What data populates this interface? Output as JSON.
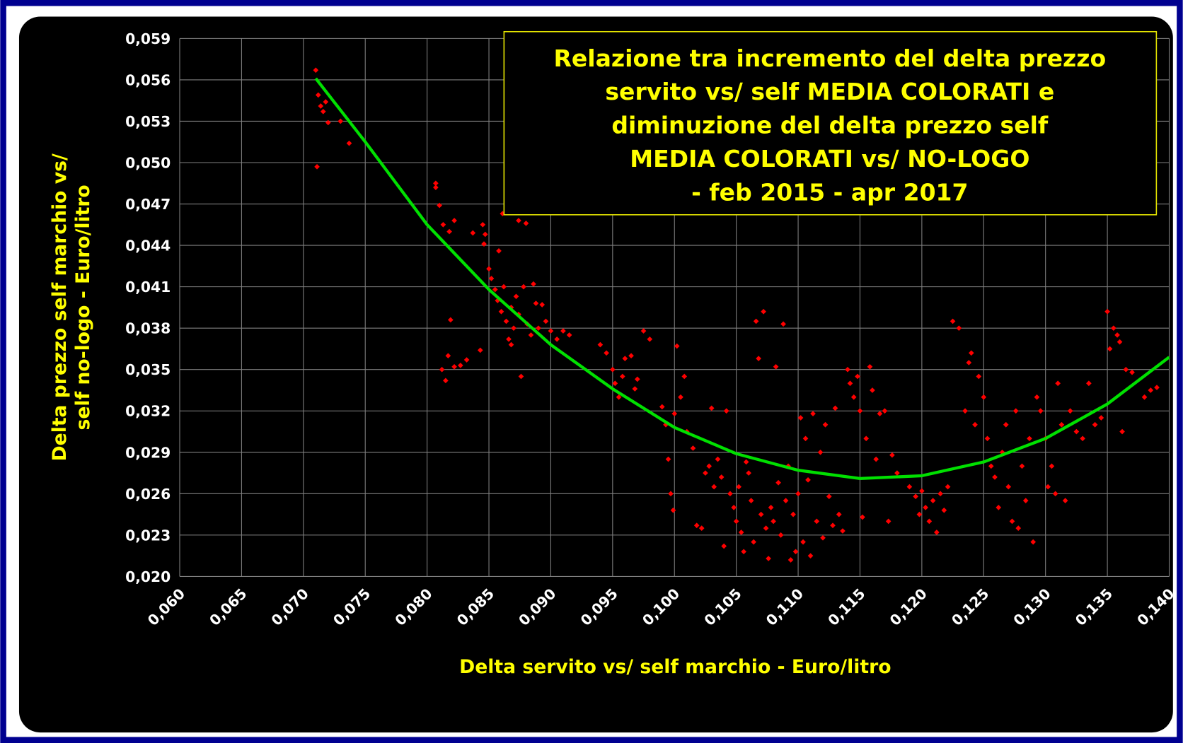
{
  "chart_data": {
    "type": "scatter",
    "title": [
      "Relazione tra incremento del delta prezzo",
      "servito vs/ self MEDIA COLORATI e",
      "diminuzione del delta prezzo self",
      "MEDIA COLORATI vs/ NO-LOGO",
      "- feb 2015 - apr 2017"
    ],
    "x_label": "Delta servito vs/ self marchio - Euro/litro",
    "y_label": [
      "Delta prezzo self marchio vs/",
      "self no-logo - Euro/litro"
    ],
    "xlim": [
      0.06,
      0.14
    ],
    "ylim": [
      0.02,
      0.059
    ],
    "xticks": [
      {
        "value": 0.06,
        "label": "0,060"
      },
      {
        "value": 0.065,
        "label": "0,065"
      },
      {
        "value": 0.07,
        "label": "0,070"
      },
      {
        "value": 0.075,
        "label": "0,075"
      },
      {
        "value": 0.08,
        "label": "0,080"
      },
      {
        "value": 0.085,
        "label": "0,085"
      },
      {
        "value": 0.09,
        "label": "0,090"
      },
      {
        "value": 0.095,
        "label": "0,095"
      },
      {
        "value": 0.1,
        "label": "0,100"
      },
      {
        "value": 0.105,
        "label": "0,105"
      },
      {
        "value": 0.11,
        "label": "0,110"
      },
      {
        "value": 0.115,
        "label": "0,115"
      },
      {
        "value": 0.12,
        "label": "0,120"
      },
      {
        "value": 0.125,
        "label": "0,125"
      },
      {
        "value": 0.13,
        "label": "0,130"
      },
      {
        "value": 0.135,
        "label": "0,135"
      },
      {
        "value": 0.14,
        "label": "0,140"
      }
    ],
    "yticks": [
      {
        "value": 0.02,
        "label": "0,020"
      },
      {
        "value": 0.023,
        "label": "0,023"
      },
      {
        "value": 0.026,
        "label": "0,026"
      },
      {
        "value": 0.029,
        "label": "0,029"
      },
      {
        "value": 0.032,
        "label": "0,032"
      },
      {
        "value": 0.035,
        "label": "0,035"
      },
      {
        "value": 0.038,
        "label": "0,038"
      },
      {
        "value": 0.041,
        "label": "0,041"
      },
      {
        "value": 0.044,
        "label": "0,044"
      },
      {
        "value": 0.047,
        "label": "0,047"
      },
      {
        "value": 0.05,
        "label": "0,050"
      },
      {
        "value": 0.053,
        "label": "0,053"
      },
      {
        "value": 0.056,
        "label": "0,056"
      },
      {
        "value": 0.059,
        "label": "0,059"
      }
    ],
    "grid": true,
    "series": [
      {
        "color": "#ff0000",
        "x": [
          0.071,
          0.0712,
          0.0714,
          0.0716,
          0.0718,
          0.072,
          0.0711,
          0.0737,
          0.073,
          0.0807,
          0.0807,
          0.081,
          0.0813,
          0.0818,
          0.0822,
          0.0812,
          0.0815,
          0.0817,
          0.0819,
          0.0822,
          0.0827,
          0.0832,
          0.0837,
          0.0843,
          0.0845,
          0.0846,
          0.0847,
          0.085,
          0.0852,
          0.0855,
          0.0857,
          0.0858,
          0.086,
          0.0862,
          0.0864,
          0.0866,
          0.0868,
          0.087,
          0.0872,
          0.0874,
          0.0876,
          0.0878,
          0.088,
          0.0881,
          0.0884,
          0.0886,
          0.0888,
          0.089,
          0.0893,
          0.0896,
          0.09,
          0.0905,
          0.091,
          0.0915,
          0.0861,
          0.0874,
          0.0868,
          0.094,
          0.0945,
          0.095,
          0.0952,
          0.0955,
          0.0958,
          0.096,
          0.0965,
          0.097,
          0.0975,
          0.098,
          0.0968,
          0.099,
          0.0993,
          0.0995,
          0.0997,
          0.0999,
          0.1,
          0.1002,
          0.1005,
          0.1008,
          0.101,
          0.1015,
          0.1018,
          0.1022,
          0.1025,
          0.1028,
          0.103,
          0.1032,
          0.1035,
          0.1038,
          0.104,
          0.1042,
          0.1045,
          0.1048,
          0.105,
          0.1052,
          0.1054,
          0.1056,
          0.1058,
          0.106,
          0.1062,
          0.1064,
          0.1066,
          0.1068,
          0.107,
          0.1072,
          0.1074,
          0.1076,
          0.1078,
          0.108,
          0.1082,
          0.1084,
          0.1086,
          0.1088,
          0.109,
          0.1092,
          0.1094,
          0.1096,
          0.1098,
          0.11,
          0.1102,
          0.1104,
          0.1106,
          0.1108,
          0.111,
          0.1112,
          0.1115,
          0.1118,
          0.112,
          0.1122,
          0.1125,
          0.1128,
          0.113,
          0.1133,
          0.1136,
          0.114,
          0.1142,
          0.1145,
          0.1148,
          0.115,
          0.1152,
          0.1155,
          0.1158,
          0.116,
          0.1163,
          0.1166,
          0.117,
          0.1173,
          0.1176,
          0.118,
          0.119,
          0.1195,
          0.1198,
          0.12,
          0.1203,
          0.1206,
          0.1209,
          0.1212,
          0.1215,
          0.1218,
          0.1221,
          0.1225,
          0.123,
          0.1235,
          0.1238,
          0.124,
          0.1243,
          0.1246,
          0.125,
          0.1253,
          0.1256,
          0.1259,
          0.1262,
          0.1265,
          0.1268,
          0.127,
          0.1273,
          0.1276,
          0.1278,
          0.1281,
          0.1284,
          0.1287,
          0.129,
          0.1293,
          0.1296,
          0.13,
          0.1302,
          0.1305,
          0.1308,
          0.131,
          0.1313,
          0.1316,
          0.132,
          0.1325,
          0.133,
          0.1335,
          0.134,
          0.1345,
          0.135,
          0.1352,
          0.1355,
          0.1358,
          0.136,
          0.1362,
          0.1365,
          0.137,
          0.138,
          0.1385,
          0.139
        ],
        "values": [
          0.0567,
          0.0549,
          0.0541,
          0.0537,
          0.0544,
          0.0529,
          0.0497,
          0.0514,
          0.053,
          0.0485,
          0.0482,
          0.0469,
          0.0455,
          0.045,
          0.0458,
          0.035,
          0.0342,
          0.036,
          0.0386,
          0.0352,
          0.0353,
          0.0357,
          0.0449,
          0.0364,
          0.0455,
          0.0441,
          0.0448,
          0.0423,
          0.0416,
          0.0408,
          0.04,
          0.0436,
          0.0392,
          0.041,
          0.0385,
          0.0372,
          0.0395,
          0.038,
          0.0403,
          0.039,
          0.0345,
          0.041,
          0.0456,
          0.0383,
          0.0375,
          0.0412,
          0.0398,
          0.038,
          0.0397,
          0.0385,
          0.0378,
          0.0372,
          0.0378,
          0.0375,
          0.0463,
          0.0458,
          0.0368,
          0.0368,
          0.0362,
          0.035,
          0.034,
          0.033,
          0.0345,
          0.0358,
          0.036,
          0.0343,
          0.0378,
          0.0372,
          0.0336,
          0.0323,
          0.031,
          0.0285,
          0.026,
          0.0248,
          0.0318,
          0.0367,
          0.033,
          0.0345,
          0.0305,
          0.0293,
          0.0237,
          0.0235,
          0.0275,
          0.028,
          0.0322,
          0.0265,
          0.0285,
          0.0272,
          0.0222,
          0.032,
          0.026,
          0.025,
          0.024,
          0.0265,
          0.0232,
          0.0218,
          0.0283,
          0.0275,
          0.0255,
          0.0225,
          0.0385,
          0.0358,
          0.0245,
          0.0392,
          0.0235,
          0.0213,
          0.025,
          0.024,
          0.0352,
          0.0268,
          0.023,
          0.0383,
          0.0255,
          0.028,
          0.0212,
          0.0245,
          0.0218,
          0.026,
          0.0315,
          0.0225,
          0.03,
          0.027,
          0.0215,
          0.0318,
          0.024,
          0.029,
          0.0228,
          0.031,
          0.0258,
          0.0237,
          0.0322,
          0.0245,
          0.0233,
          0.035,
          0.034,
          0.033,
          0.0345,
          0.032,
          0.0243,
          0.03,
          0.0352,
          0.0335,
          0.0285,
          0.0318,
          0.032,
          0.024,
          0.0288,
          0.0275,
          0.0265,
          0.0258,
          0.0245,
          0.0262,
          0.025,
          0.024,
          0.0255,
          0.0232,
          0.026,
          0.0248,
          0.0265,
          0.0385,
          0.038,
          0.032,
          0.0355,
          0.0362,
          0.031,
          0.0345,
          0.033,
          0.03,
          0.028,
          0.0272,
          0.025,
          0.029,
          0.031,
          0.0265,
          0.024,
          0.032,
          0.0235,
          0.028,
          0.0255,
          0.03,
          0.0225,
          0.033,
          0.032,
          0.03,
          0.0265,
          0.028,
          0.026,
          0.034,
          0.031,
          0.0255,
          0.032,
          0.0305,
          0.03,
          0.034,
          0.031,
          0.0315,
          0.0392,
          0.0365,
          0.038,
          0.0375,
          0.037,
          0.0305,
          0.035,
          0.0348,
          0.033,
          0.0335,
          0.0337
        ]
      }
    ],
    "trend": {
      "color": "#00e000",
      "x": [
        0.071,
        0.075,
        0.08,
        0.085,
        0.09,
        0.095,
        0.1,
        0.105,
        0.11,
        0.115,
        0.12,
        0.125,
        0.13,
        0.135,
        0.14
      ],
      "values": [
        0.0561,
        0.0515,
        0.0455,
        0.0408,
        0.0368,
        0.0336,
        0.0308,
        0.0289,
        0.0277,
        0.0271,
        0.0273,
        0.0283,
        0.03,
        0.0325,
        0.0359
      ]
    }
  }
}
